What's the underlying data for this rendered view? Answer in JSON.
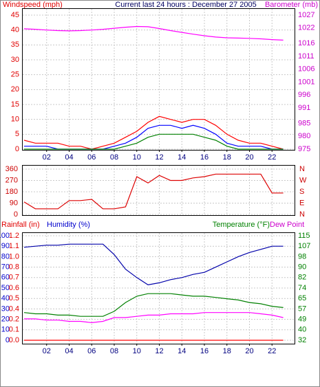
{
  "chart_data": [
    {
      "type": "line",
      "title": "Current last 24 hours : December 27 2005",
      "ylabel": "Windspeed (mph)",
      "y2label": "Barometer (mb)",
      "x": [
        0,
        1,
        2,
        3,
        4,
        5,
        6,
        7,
        8,
        9,
        10,
        11,
        12,
        13,
        14,
        15,
        16,
        17,
        18,
        19,
        20,
        21,
        22,
        23
      ],
      "xlim": [
        0,
        24
      ],
      "xticks": [
        {
          "value": 2,
          "label": "02"
        },
        {
          "value": 4,
          "label": "04"
        },
        {
          "value": 6,
          "label": "06"
        },
        {
          "value": 8,
          "label": "08"
        },
        {
          "value": 10,
          "label": "10"
        },
        {
          "value": 12,
          "label": "12"
        },
        {
          "value": 14,
          "label": "14"
        },
        {
          "value": 16,
          "label": "16"
        },
        {
          "value": 18,
          "label": "18"
        },
        {
          "value": 20,
          "label": "20"
        },
        {
          "value": 22,
          "label": "22"
        }
      ],
      "ylim": [
        0,
        45
      ],
      "yticks": [
        0,
        5,
        10,
        15,
        20,
        25,
        30,
        35,
        40,
        45
      ],
      "y2lim": [
        975,
        1027
      ],
      "y2ticks": [
        975,
        980,
        985,
        991,
        996,
        1001,
        1006,
        1011,
        1016,
        1022,
        1027
      ],
      "grid": true,
      "series": [
        {
          "color": "#ff0000",
          "values": [
            3,
            2,
            2,
            2,
            1,
            1,
            0,
            1,
            2,
            4,
            6,
            9,
            11,
            10,
            9,
            10,
            10,
            8,
            5,
            3,
            2,
            2,
            1,
            0
          ]
        },
        {
          "color": "#0000ff",
          "values": [
            1,
            1,
            1,
            0,
            0,
            0,
            0,
            0,
            1,
            2,
            4,
            7,
            8,
            8,
            7,
            8,
            7,
            5,
            2,
            1,
            1,
            1,
            0,
            0
          ]
        },
        {
          "color": "#008000",
          "values": [
            0,
            0,
            0,
            0,
            0,
            0,
            0,
            0,
            0,
            1,
            2,
            4,
            5,
            5,
            5,
            5,
            4,
            3,
            1,
            0,
            0,
            0,
            0,
            0
          ]
        },
        {
          "color": "#ff00ff",
          "axis": "y2",
          "values": [
            1021.7,
            1021.5,
            1021.2,
            1021,
            1020.9,
            1021,
            1021.2,
            1021.5,
            1021.9,
            1022.3,
            1022.6,
            1022.5,
            1021.8,
            1021,
            1020.3,
            1019.6,
            1019,
            1018.5,
            1018.2,
            1018.1,
            1018,
            1017.8,
            1017.5,
            1017.3
          ]
        }
      ]
    },
    {
      "type": "line",
      "x": [
        0,
        1,
        2,
        3,
        4,
        5,
        6,
        7,
        8,
        9,
        10,
        11,
        12,
        13,
        14,
        15,
        16,
        17,
        18,
        19,
        20,
        21,
        22,
        23
      ],
      "xlim": [
        0,
        24
      ],
      "ylim": [
        0,
        360
      ],
      "yticks": [
        0,
        90,
        180,
        270,
        360
      ],
      "y2lim": [
        0,
        360
      ],
      "y2ticks": [
        {
          "value": 0,
          "label": "N"
        },
        {
          "value": 90,
          "label": "E"
        },
        {
          "value": 180,
          "label": "S"
        },
        {
          "value": 270,
          "label": "W"
        },
        {
          "value": 360,
          "label": "N"
        }
      ],
      "grid": true,
      "series": [
        {
          "color": "#dd0000",
          "values": [
            100,
            45,
            45,
            45,
            110,
            110,
            120,
            45,
            45,
            60,
            300,
            250,
            310,
            270,
            270,
            290,
            300,
            320,
            320,
            320,
            320,
            320,
            170,
            170
          ]
        }
      ]
    },
    {
      "type": "line",
      "ylabel": "Humidity (%)",
      "y3label": "Rainfall (in)",
      "y2label": "Temperature (°F)",
      "x": [
        0,
        1,
        2,
        3,
        4,
        5,
        6,
        7,
        8,
        9,
        10,
        11,
        12,
        13,
        14,
        15,
        16,
        17,
        18,
        19,
        20,
        21,
        22,
        23
      ],
      "xlim": [
        0,
        24
      ],
      "xticks": [
        {
          "value": 2,
          "label": "02"
        },
        {
          "value": 4,
          "label": "04"
        },
        {
          "value": 6,
          "label": "06"
        },
        {
          "value": 8,
          "label": "08"
        },
        {
          "value": 10,
          "label": "10"
        },
        {
          "value": 12,
          "label": "12"
        },
        {
          "value": 14,
          "label": "14"
        },
        {
          "value": 16,
          "label": "16"
        },
        {
          "value": 18,
          "label": "18"
        },
        {
          "value": 20,
          "label": "20"
        },
        {
          "value": 22,
          "label": "22"
        }
      ],
      "ylim": [
        0,
        100
      ],
      "yticks": [
        0,
        10,
        20,
        30,
        40,
        50,
        60,
        70,
        80,
        90,
        100
      ],
      "y3lim": [
        0,
        1.2
      ],
      "y3ticks": [
        {
          "value": 0,
          "label": "0.0"
        },
        {
          "value": 0.12,
          "label": "0.1"
        },
        {
          "value": 0.24,
          "label": "0.2"
        },
        {
          "value": 0.36,
          "label": "0.4"
        },
        {
          "value": 0.48,
          "label": "0.5"
        },
        {
          "value": 0.6,
          "label": "0.6"
        },
        {
          "value": 0.72,
          "label": "0.7"
        },
        {
          "value": 0.84,
          "label": "0.8"
        },
        {
          "value": 0.96,
          "label": "1.0"
        },
        {
          "value": 1.08,
          "label": "1.1"
        },
        {
          "value": 1.2,
          "label": "1.2"
        }
      ],
      "y2lim": [
        32,
        115
      ],
      "y2ticks": [
        32,
        {
          "value": 40.3,
          "label": "40"
        },
        {
          "value": 48.6,
          "label": "49"
        },
        {
          "value": 56.9,
          "label": "57"
        },
        {
          "value": 65.2,
          "label": "65"
        },
        {
          "value": 73.5,
          "label": "74"
        },
        {
          "value": 81.8,
          "label": "82"
        },
        {
          "value": 90.1,
          "label": "90"
        },
        {
          "value": 98.4,
          "label": "98"
        },
        {
          "value": 106.7,
          "label": "107"
        },
        115
      ],
      "grid": true,
      "series": [
        {
          "color": "#ff0000",
          "axis": "y3",
          "values": [
            0,
            0,
            0,
            0,
            0,
            0,
            0,
            0,
            0,
            0,
            0,
            0,
            0,
            0,
            0,
            0,
            0,
            0,
            0,
            0,
            0,
            0,
            0,
            0
          ]
        },
        {
          "color": "#0000aa",
          "values": [
            89,
            90,
            91,
            91,
            92,
            92,
            92,
            92,
            82,
            68,
            60,
            53,
            55,
            58,
            60,
            63,
            65,
            70,
            75,
            80,
            84,
            87,
            90,
            90
          ]
        },
        {
          "color": "#008000",
          "axis": "y2",
          "values": [
            54,
            53,
            53,
            52,
            52,
            51,
            51,
            51,
            55,
            62,
            67,
            69,
            69,
            69,
            68,
            67,
            67,
            66,
            65,
            64,
            62,
            61,
            59,
            58
          ]
        },
        {
          "name": "Dew Point",
          "color": "#ff00ff",
          "axis": "y2",
          "values": [
            49,
            49,
            48,
            48,
            47,
            47,
            46,
            47,
            50,
            50,
            51,
            52,
            52,
            53,
            53,
            53,
            54,
            54,
            54,
            54,
            54,
            53,
            52,
            50
          ]
        }
      ]
    }
  ]
}
